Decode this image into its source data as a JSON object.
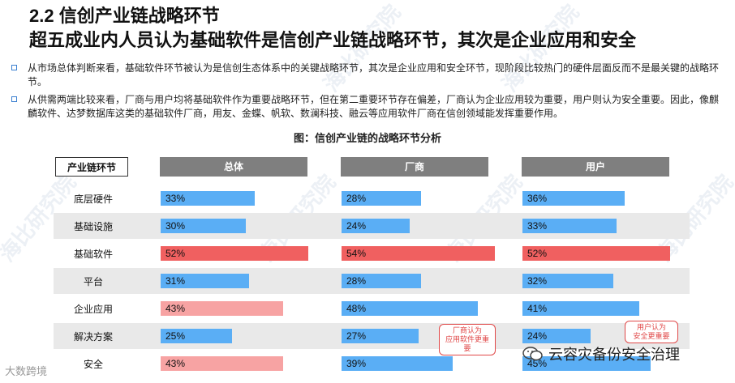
{
  "header": {
    "section": "2.2 信创产业链战略环节",
    "headline": "超五成业内人员认为基础软件是信创产业链战略环节，其次是企业应用和安全"
  },
  "bullets": [
    "从市场总体判断来看，基础软件环节被认为是信创生态体系中的关键战略环节，其次是企业应用和安全环节，现阶段比较热门的硬件层面反而不是最关键的战略环节。",
    "从供需两端比较来看，厂商与用户均将基础软件作为重要战略环节，但在第二重要环节存在偏差，厂商认为企业应用较为重要，用户则认为安全重要。因此，像麒麟软件、达梦数据库这类的基础软件厂商，用友、金蝶、帆软、数澜科技、融云等应用软件厂商在信创领域能发挥重要作用。"
  ],
  "chart_data": {
    "type": "bar",
    "title": "图：信创产业链的战略环节分析",
    "row_header": "产业链环节",
    "categories": [
      "底层硬件",
      "基础设施",
      "基础软件",
      "平台",
      "企业应用",
      "解决方案",
      "安全"
    ],
    "series": [
      {
        "name": "总体",
        "values": [
          33,
          30,
          52,
          31,
          43,
          25,
          43
        ],
        "labels": [
          "33%",
          "30%",
          "52%",
          "31%",
          "43%",
          "25%",
          "43%"
        ]
      },
      {
        "name": "厂商",
        "values": [
          28,
          24,
          54,
          28,
          48,
          27,
          39
        ],
        "labels": [
          "28%",
          "24%",
          "54%",
          "28%",
          "48%",
          "27%",
          "39%"
        ]
      },
      {
        "name": "用户",
        "values": [
          36,
          33,
          52,
          32,
          41,
          24,
          45
        ],
        "labels": [
          "36%",
          "33%",
          "52%",
          "32%",
          "41%",
          "24%",
          "45%"
        ]
      }
    ],
    "highlight": {
      "top": {
        "category": "基础软件",
        "color": "#f06060"
      },
      "second_overall": {
        "categories": [
          "企业应用",
          "安全"
        ],
        "color": "#f7a3a3"
      },
      "default_color": "#5aaef5"
    },
    "callouts": [
      {
        "series": "厂商",
        "text": "厂商认为\n应用软件更重要"
      },
      {
        "series": "用户",
        "text": "用户认为\n安全更重要"
      }
    ]
  },
  "watermarks": [
    "海比研究院",
    "海比研究院",
    "海比研究院",
    "海比研究院",
    "海比研究院",
    "海比研究院"
  ],
  "footer": {
    "wechat_account": "云容灾备份安全治理",
    "corner_logo": "大数跨境"
  }
}
